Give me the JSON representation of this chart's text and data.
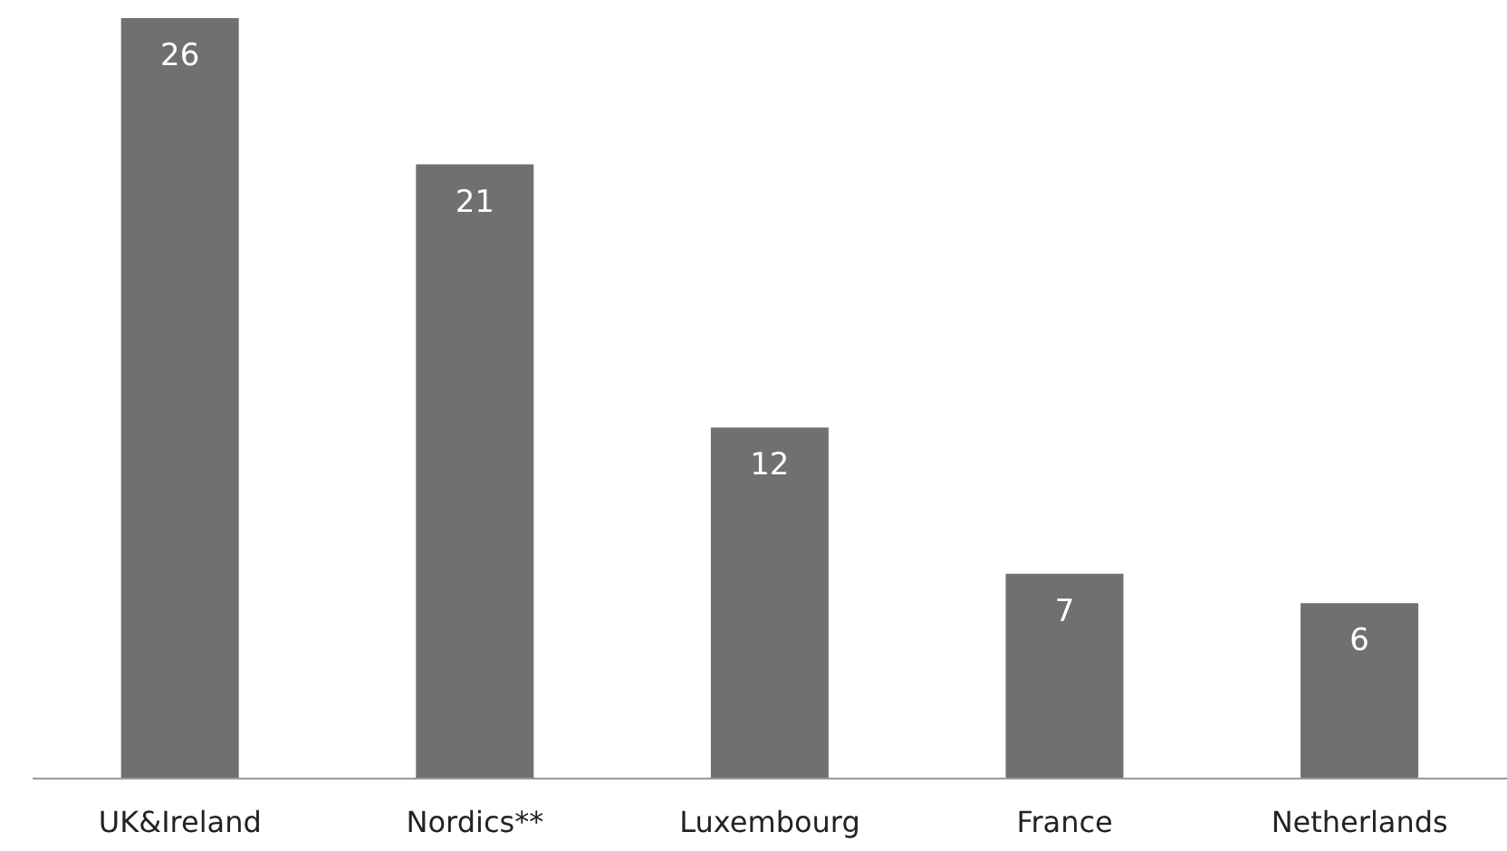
{
  "chart_data": {
    "type": "bar",
    "categories": [
      "UK&Ireland",
      "Nordics**",
      "Luxembourg",
      "France",
      "Netherlands"
    ],
    "values": [
      26,
      21,
      12,
      7,
      6
    ],
    "color": "#707070",
    "data_labels": true
  }
}
